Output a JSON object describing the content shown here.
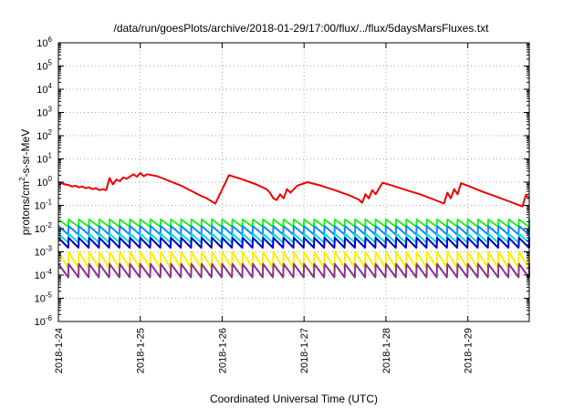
{
  "chart_data": {
    "type": "line",
    "title": "/data/run/goesPlots/archive/2018-01-29/17:00/flux/../flux/5daysMarsFluxes.txt",
    "xlabel": "Coordinated Universal Time (UTC)",
    "ylabel": {
      "base": "protons/cm",
      "sup": "2",
      "rest": "-s-sr-MeV"
    },
    "yscale": "log",
    "ylim": [
      -6,
      6
    ],
    "xlim": [
      "2018-01-24T00:00",
      "2018-01-29T18:00"
    ],
    "grid": true,
    "legend": "none",
    "x_ticks": [
      "2018-1-24",
      "2018-1-25",
      "2018-1-26",
      "2018-1-27",
      "2018-1-28",
      "2018-1-29"
    ],
    "y_ticks": [
      {
        "base": "10",
        "exp": "-6"
      },
      {
        "base": "10",
        "exp": "-5"
      },
      {
        "base": "10",
        "exp": "-4"
      },
      {
        "base": "10",
        "exp": "-3"
      },
      {
        "base": "10",
        "exp": "-2"
      },
      {
        "base": "10",
        "exp": "-1"
      },
      {
        "base": "10",
        "exp": "0"
      },
      {
        "base": "10",
        "exp": "1"
      },
      {
        "base": "10",
        "exp": "2"
      },
      {
        "base": "10",
        "exp": "3"
      },
      {
        "base": "10",
        "exp": "4"
      },
      {
        "base": "10",
        "exp": "5"
      },
      {
        "base": "10",
        "exp": "6"
      }
    ],
    "series": [
      {
        "color": "#ee0000",
        "x": [
          "2018-01-24T00:00",
          "2018-01-24T02:00",
          "2018-01-24T03:00",
          "2018-01-24T04:00",
          "2018-01-24T05:00",
          "2018-01-24T06:00",
          "2018-01-24T07:00",
          "2018-01-24T08:00",
          "2018-01-24T09:00",
          "2018-01-24T10:00",
          "2018-01-24T11:00",
          "2018-01-24T12:00",
          "2018-01-24T13:00",
          "2018-01-24T14:00",
          "2018-01-24T15:00",
          "2018-01-24T16:00",
          "2018-01-24T17:00",
          "2018-01-24T18:00",
          "2018-01-24T19:00",
          "2018-01-24T20:00",
          "2018-01-24T22:00",
          "2018-01-24T23:00",
          "2018-01-25T00:00",
          "2018-01-25T01:00",
          "2018-01-25T02:00",
          "2018-01-25T05:00",
          "2018-01-25T08:00",
          "2018-01-25T12:00",
          "2018-01-25T16:00",
          "2018-01-25T18:00",
          "2018-01-25T19:00",
          "2018-01-25T22:00",
          "2018-01-26T02:00",
          "2018-01-26T06:00",
          "2018-01-26T10:00",
          "2018-01-26T13:00",
          "2018-01-26T14:00",
          "2018-01-26T15:00",
          "2018-01-26T16:00",
          "2018-01-26T17:00",
          "2018-01-26T18:00",
          "2018-01-26T19:00",
          "2018-01-26T20:00",
          "2018-01-26T22:00",
          "2018-01-27T01:00",
          "2018-01-27T05:00",
          "2018-01-27T09:00",
          "2018-01-27T13:00",
          "2018-01-27T16:00",
          "2018-01-27T17:00",
          "2018-01-27T18:00",
          "2018-01-27T19:00",
          "2018-01-27T20:00",
          "2018-01-27T21:00",
          "2018-01-27T23:00",
          "2018-01-28T02:00",
          "2018-01-28T06:00",
          "2018-01-28T10:00",
          "2018-01-28T14:00",
          "2018-01-28T17:00",
          "2018-01-28T18:00",
          "2018-01-28T19:00",
          "2018-01-28T20:00",
          "2018-01-28T21:00",
          "2018-01-28T22:00",
          "2018-01-29T00:00",
          "2018-01-29T04:00",
          "2018-01-29T08:00",
          "2018-01-29T12:00",
          "2018-01-29T16:00",
          "2018-01-29T17:00",
          "2018-01-29T18:00"
        ],
        "y": [
          1.0,
          0.8,
          0.75,
          0.65,
          0.7,
          0.6,
          0.65,
          0.55,
          0.6,
          0.5,
          0.55,
          0.45,
          0.5,
          0.45,
          1.5,
          0.8,
          1.3,
          1.1,
          1.6,
          1.4,
          2.2,
          1.7,
          2.5,
          1.8,
          2.2,
          1.8,
          1.2,
          0.7,
          0.35,
          0.25,
          0.22,
          0.12,
          2.0,
          1.3,
          0.8,
          0.5,
          0.35,
          0.2,
          0.17,
          0.3,
          0.2,
          0.5,
          0.35,
          0.7,
          1.0,
          0.7,
          0.45,
          0.28,
          0.18,
          0.13,
          0.3,
          0.2,
          0.45,
          0.3,
          0.95,
          0.7,
          0.45,
          0.3,
          0.18,
          0.12,
          0.35,
          0.2,
          0.5,
          0.3,
          0.9,
          0.7,
          0.4,
          0.25,
          0.15,
          0.09,
          0.28,
          0.2
        ]
      },
      {
        "color": "#22ee22",
        "sawtooth": {
          "top": 0.025,
          "bottom": 0.012,
          "period_h": 3
        }
      },
      {
        "color": "#1188ff",
        "sawtooth": {
          "top": 0.013,
          "bottom": 0.0055,
          "period_h": 3
        }
      },
      {
        "color": "#00dddd",
        "sawtooth": {
          "top": 0.006,
          "bottom": 0.0025,
          "period_h": 3
        }
      },
      {
        "color": "#0000cc",
        "sawtooth": {
          "top": 0.004,
          "bottom": 0.0015,
          "period_h": 3
        }
      },
      {
        "color": "#ffee00",
        "sawtooth": {
          "top": 0.001,
          "bottom": 0.0002,
          "period_h": 3
        }
      },
      {
        "color": "#883388",
        "sawtooth": {
          "top": 0.0003,
          "bottom": 8e-05,
          "period_h": 3
        }
      }
    ]
  }
}
